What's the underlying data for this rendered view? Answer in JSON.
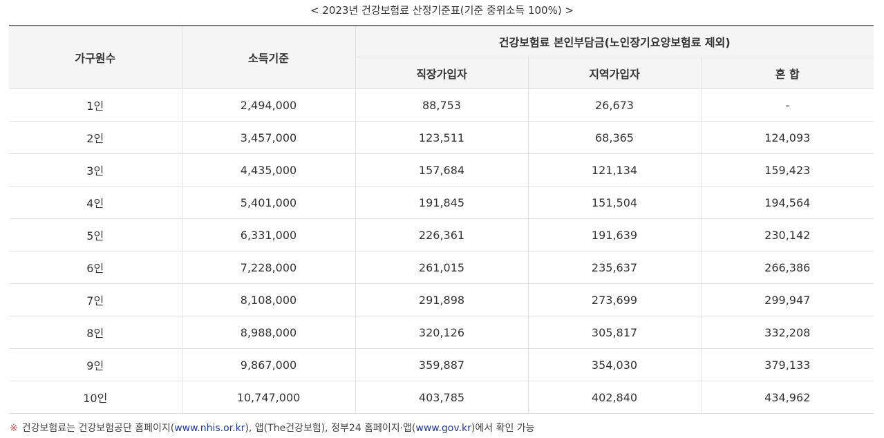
{
  "caption": "< 2023년 건강보험료 산정기준표(기준 중위소득 100%) >",
  "table": {
    "headers": {
      "household": "가구원수",
      "income": "소득기준",
      "premium_group": "건강보험료 본인부담금(노인장기요양보험료 제외)",
      "workplace": "직장가입자",
      "regional": "지역가입자",
      "mixed": "혼 합"
    },
    "rows": [
      [
        "1인",
        "2,494,000",
        "88,753",
        "26,673",
        "-"
      ],
      [
        "2인",
        "3,457,000",
        "123,511",
        "68,365",
        "124,093"
      ],
      [
        "3인",
        "4,435,000",
        "157,684",
        "121,134",
        "159,423"
      ],
      [
        "4인",
        "5,401,000",
        "191,845",
        "151,504",
        "194,564"
      ],
      [
        "5인",
        "6,331,000",
        "226,361",
        "191,639",
        "230,142"
      ],
      [
        "6인",
        "7,228,000",
        "261,015",
        "235,637",
        "266,386"
      ],
      [
        "7인",
        "8,108,000",
        "291,898",
        "273,699",
        "299,947"
      ],
      [
        "8인",
        "8,988,000",
        "320,126",
        "305,817",
        "332,208"
      ],
      [
        "9인",
        "9,867,000",
        "359,887",
        "354,030",
        "379,133"
      ],
      [
        "10인",
        "10,747,000",
        "403,785",
        "402,840",
        "434,962"
      ]
    ]
  },
  "note": {
    "mark": "※",
    "text1": "건강보험료는 건강보험공단 홈페이지(",
    "link1": "www.nhis.or.kr",
    "text2": "), 앱(The건강보험), 정부24 홈페이지·앱(",
    "link2": "www.gov.kr",
    "text3": ")에서 확인 가능"
  }
}
